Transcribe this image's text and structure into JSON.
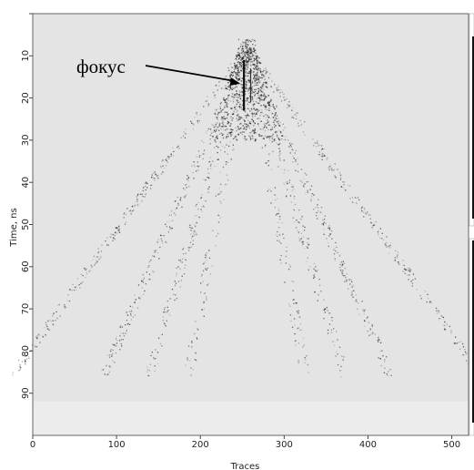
{
  "chart_data": {
    "type": "heatmap",
    "title": "",
    "xlabel": "Traces",
    "ylabel": "Time, ns",
    "xlim": [
      0,
      520
    ],
    "ylim": [
      0,
      100
    ],
    "y_inverted": true,
    "grid": false,
    "x_ticks": [
      0,
      100,
      200,
      300,
      400,
      500
    ],
    "y_ticks": [
      10,
      20,
      30,
      40,
      50,
      60,
      70,
      80,
      90
    ],
    "colormap": "grayscale",
    "annotations": [
      {
        "text": "фокус",
        "arrow_to": {
          "trace": 252,
          "time": 17
        }
      }
    ],
    "colors": {
      "background": "#e4e4e4",
      "lower_band": "#ececec",
      "scatter": "#1a1a1a"
    }
  }
}
